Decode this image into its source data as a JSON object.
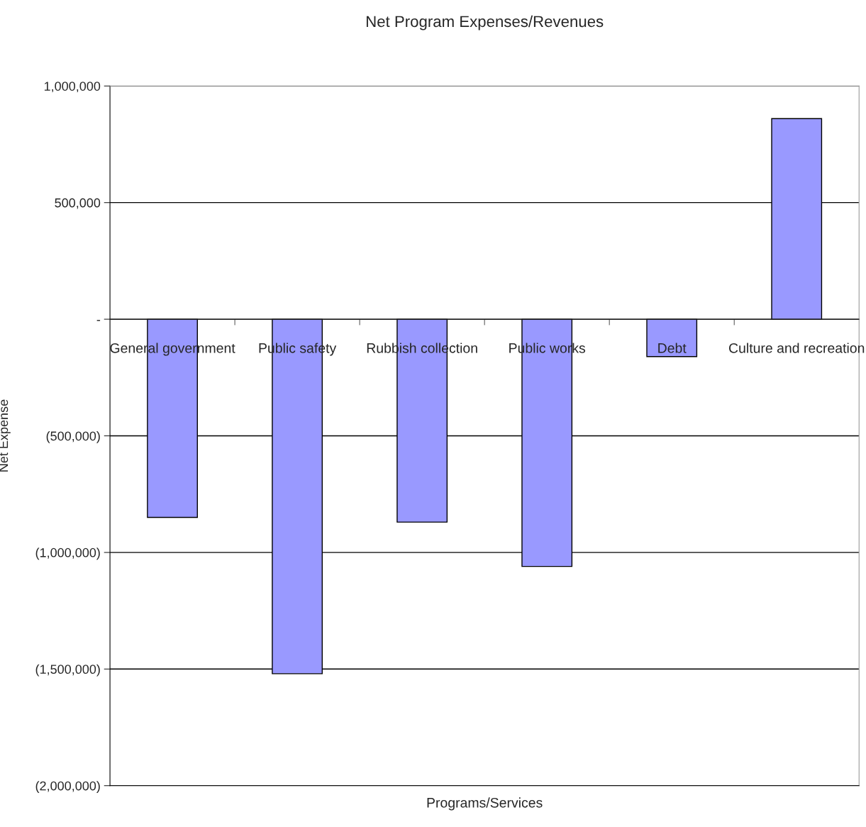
{
  "chart_data": {
    "type": "bar",
    "title": "Net Program Expenses/Revenues",
    "xlabel": "Programs/Services",
    "ylabel": "Net Expense",
    "categories": [
      "General government",
      "Public safety",
      "Rubbish collection",
      "Public works",
      "Debt",
      "Culture and recreation"
    ],
    "values": [
      -850000,
      -1520000,
      -870000,
      -1060000,
      -160000,
      860000
    ],
    "color": "#9999ff",
    "ylim": [
      -2000000,
      1000000
    ],
    "yticks": [
      {
        "value": -2000000,
        "label": "(2,000,000)"
      },
      {
        "value": -1500000,
        "label": "(1,500,000)"
      },
      {
        "value": -1000000,
        "label": "(1,000,000)"
      },
      {
        "value": -500000,
        "label": "(500,000)"
      },
      {
        "value": 0,
        "label": "-"
      },
      {
        "value": 500000,
        "label": "500,000"
      },
      {
        "value": 1000000,
        "label": "1,000,000"
      }
    ],
    "grid": "y",
    "legend": false
  }
}
